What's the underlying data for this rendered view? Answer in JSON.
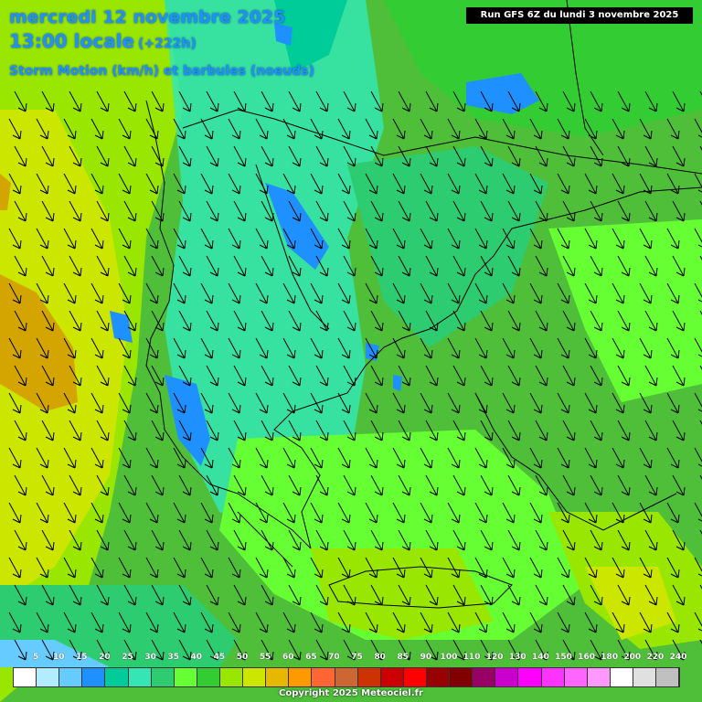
{
  "header": {
    "date_line": "mercredi 12 novembre 2025",
    "time_line": "13:00 locale",
    "time_offset": "(+222h)",
    "parameter": "Storm Motion (km/h) et barbules (noeuds)"
  },
  "run_info": "Run GFS 6Z du lundi 3 novembre 2025",
  "legend": {
    "labels": [
      "5",
      "10",
      "15",
      "20",
      "25",
      "30",
      "35",
      "40",
      "45",
      "50",
      "55",
      "60",
      "65",
      "70",
      "75",
      "80",
      "85",
      "90",
      "100",
      "110",
      "120",
      "130",
      "140",
      "150",
      "160",
      "180",
      "200",
      "220",
      "240"
    ],
    "colors": [
      "#ffffff",
      "#b3ecff",
      "#66ccff",
      "#1e90ff",
      "#00cc99",
      "#33e6b3",
      "#2ecc71",
      "#66ff33",
      "#33cc33",
      "#99e600",
      "#cce600",
      "#e6b800",
      "#ff9900",
      "#ff6633",
      "#cc6633",
      "#cc3300",
      "#cc0000",
      "#ff0000",
      "#990000",
      "#800000",
      "#990066",
      "#cc00cc",
      "#ff00ff",
      "#ff33ff",
      "#ff66ff",
      "#ff99ff",
      "#ffffff",
      "#e0e0e0",
      "#c0c0c0"
    ]
  },
  "copyright": "Copyright 2025 Meteociel.fr",
  "colors": {
    "title": "#1e90ff",
    "background_green": "#4fbf3a",
    "light_green": "#66ff33",
    "cyan_green": "#33e6b3",
    "yellow": "#cce600",
    "orange": "#e6b800",
    "blue": "#1e90ff"
  }
}
